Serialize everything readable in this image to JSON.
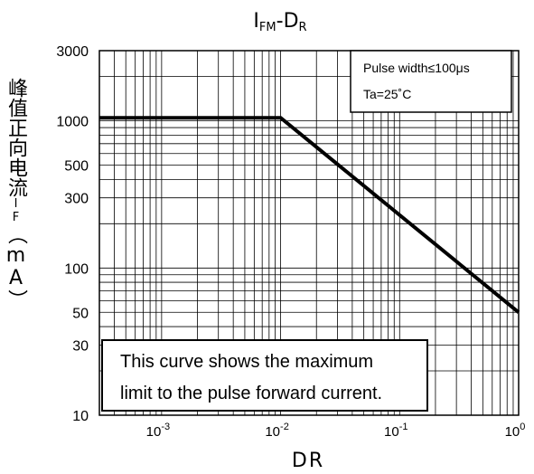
{
  "chart_data": {
    "type": "line",
    "title": {
      "main": "I",
      "sub1": "FM",
      "dash": "-D",
      "sub2": "R"
    },
    "xlabel": "DR",
    "ylabel": {
      "main": "峰值正向电流",
      "sub": "IF",
      "unit": "（mA）"
    },
    "x_scale": "log",
    "y_scale": "log",
    "xlim": [
      0.0003,
      1
    ],
    "ylim": [
      10,
      3000
    ],
    "x_ticks": [
      {
        "value": 0.001,
        "base": "10",
        "exp": "-3"
      },
      {
        "value": 0.01,
        "base": "10",
        "exp": "-2"
      },
      {
        "value": 0.1,
        "base": "10",
        "exp": "-1"
      },
      {
        "value": 1,
        "base": "10",
        "exp": "0"
      }
    ],
    "y_ticks": [
      {
        "value": 3000,
        "label": "3000"
      },
      {
        "value": 1000,
        "label": "1000"
      },
      {
        "value": 500,
        "label": "500"
      },
      {
        "value": 300,
        "label": "300"
      },
      {
        "value": 100,
        "label": "100"
      },
      {
        "value": 50,
        "label": "50"
      },
      {
        "value": 30,
        "label": "30"
      },
      {
        "value": 10,
        "label": "10"
      }
    ],
    "grid": true,
    "series": [
      {
        "x": [
          0.0003,
          0.01,
          1
        ],
        "y": [
          1050,
          1050,
          50
        ]
      }
    ],
    "legend_box": {
      "position": "top-right",
      "lines": [
        "Pulse width≤100μs",
        "Ta=25˚C"
      ]
    },
    "note_box": {
      "position": "bottom-left",
      "lines": [
        "This curve shows the maximum",
        "limit to the pulse forward current."
      ]
    }
  }
}
